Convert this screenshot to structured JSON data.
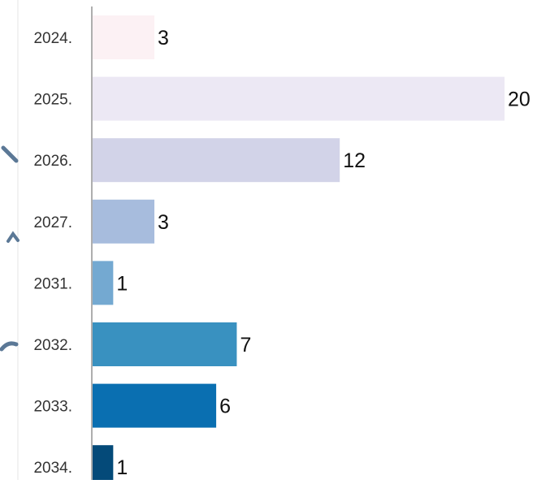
{
  "chart_data": {
    "type": "bar",
    "orientation": "horizontal",
    "title": "",
    "xlabel": "",
    "ylabel": "",
    "categories": [
      "2024.",
      "2025.",
      "2026.",
      "2027.",
      "2031.",
      "2032.",
      "2033.",
      "2034."
    ],
    "values": [
      3,
      20,
      12,
      3,
      1,
      7,
      6,
      1
    ],
    "colors": [
      "#fcf1f4",
      "#ece8f4",
      "#d2d3e8",
      "#a7bcdd",
      "#74a9d1",
      "#3991c0",
      "#0a6fb1",
      "#044a79"
    ],
    "xlim": [
      0,
      20
    ],
    "grid": false,
    "legend": "none",
    "data_labels": true
  }
}
